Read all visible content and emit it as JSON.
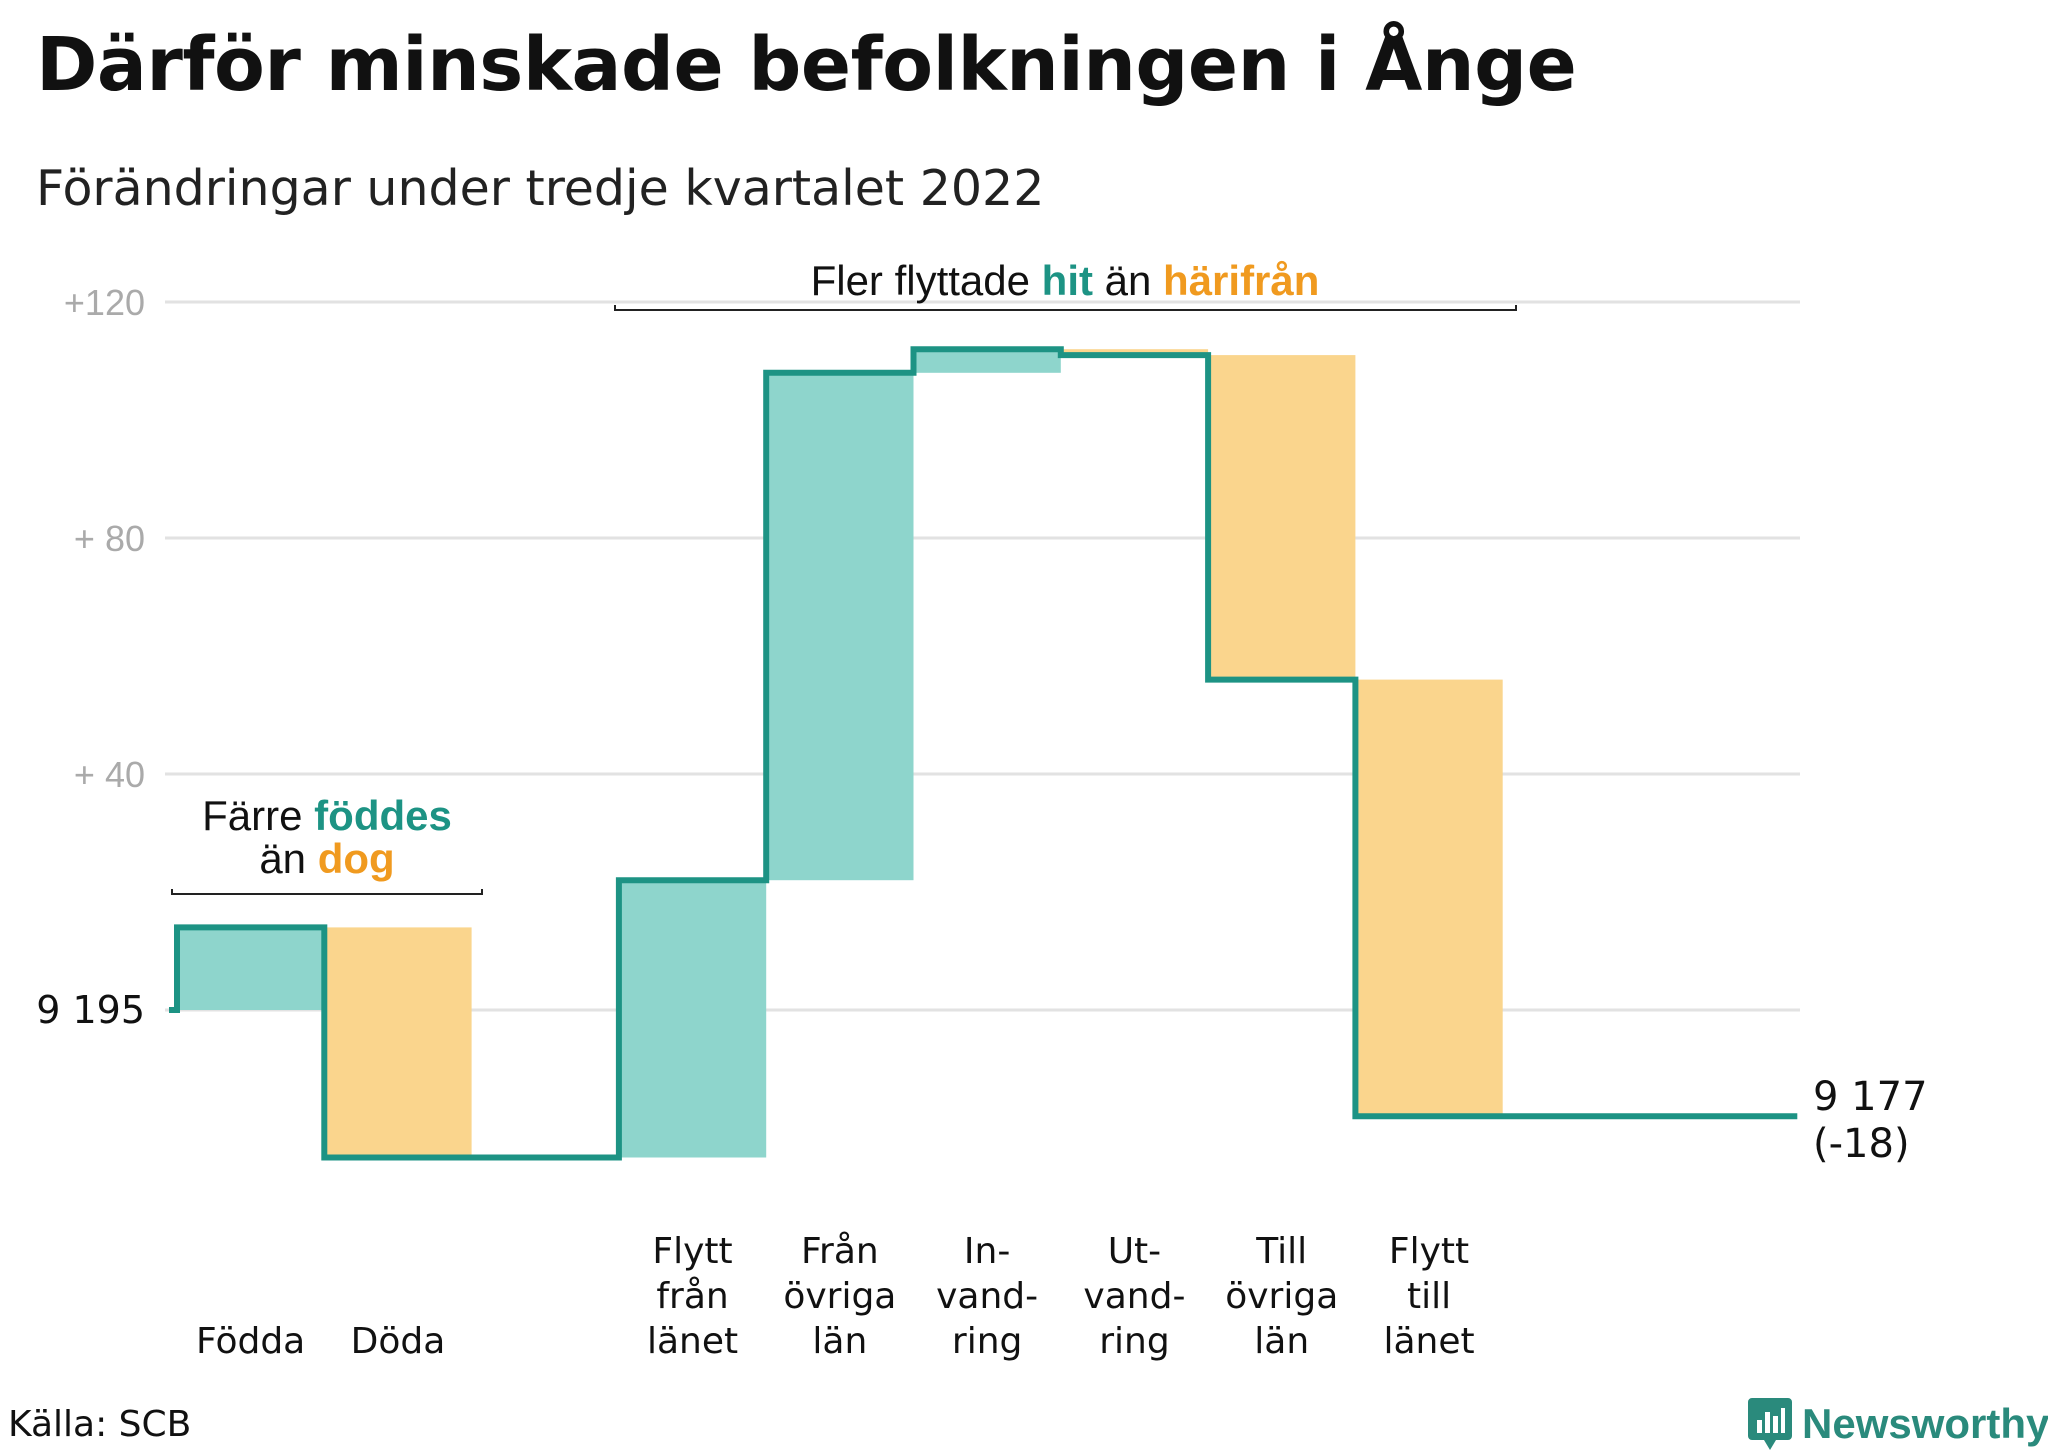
{
  "header": {
    "title": "Därför minskade befolkningen i Ånge",
    "subtitle": "Förändringar under tredje kvartalet 2022"
  },
  "footer": {
    "source": "Källa: SCB",
    "brand": "Newsworthy"
  },
  "colors": {
    "increase": "#8ed5cc",
    "decrease": "#fad58d",
    "line": "#1d9384",
    "highlight_teal": "#1d9384",
    "highlight_orange": "#f09a1f",
    "grid": "#e2e2e2"
  },
  "chart_data": {
    "type": "waterfall",
    "title": "Därför minskade befolkningen i Ånge",
    "subtitle": "Förändringar under tredje kvartalet 2022",
    "start_label": "9 195",
    "start_value": 0,
    "end_label": "9 177",
    "end_change_label": "(-18)",
    "ylim": [
      -30,
      120
    ],
    "yticks": [
      {
        "value": 0,
        "label": "9 195"
      },
      {
        "value": 40,
        "label": "+ 40"
      },
      {
        "value": 80,
        "label": "+ 80"
      },
      {
        "value": 120,
        "label": "+120"
      }
    ],
    "steps": [
      {
        "label": [
          "Födda"
        ],
        "change": 14
      },
      {
        "label": [
          "Döda"
        ],
        "change": -39
      },
      {
        "label": [
          ""
        ],
        "change": 0
      },
      {
        "label": [
          "Flytt",
          "från",
          "länet"
        ],
        "change": 47
      },
      {
        "label": [
          "Från",
          "övriga",
          "län"
        ],
        "change": 86
      },
      {
        "label": [
          "In-",
          "vand-",
          "ring"
        ],
        "change": 4
      },
      {
        "label": [
          "Ut-",
          "vand-",
          "ring"
        ],
        "change": -1
      },
      {
        "label": [
          "Till",
          "övriga",
          "län"
        ],
        "change": -55
      },
      {
        "label": [
          "Flytt",
          "till",
          "länet"
        ],
        "change": -74
      },
      {
        "label": [
          ""
        ],
        "change": 0
      },
      {
        "label": [
          ""
        ],
        "change": 0
      }
    ],
    "annotations": [
      {
        "parts": [
          [
            {
              "text": "Färre ",
              "style": "plain"
            },
            {
              "text": "föddes",
              "style": "teal"
            }
          ],
          [
            {
              "text": "än ",
              "style": "plain"
            },
            {
              "text": "dog",
              "style": "orange"
            }
          ]
        ]
      },
      {
        "parts": [
          [
            {
              "text": "Fler flyttade ",
              "style": "plain"
            },
            {
              "text": "hit",
              "style": "teal"
            },
            {
              "text": " än ",
              "style": "plain"
            },
            {
              "text": "härifrån",
              "style": "orange"
            }
          ]
        ]
      }
    ],
    "grid": true
  }
}
